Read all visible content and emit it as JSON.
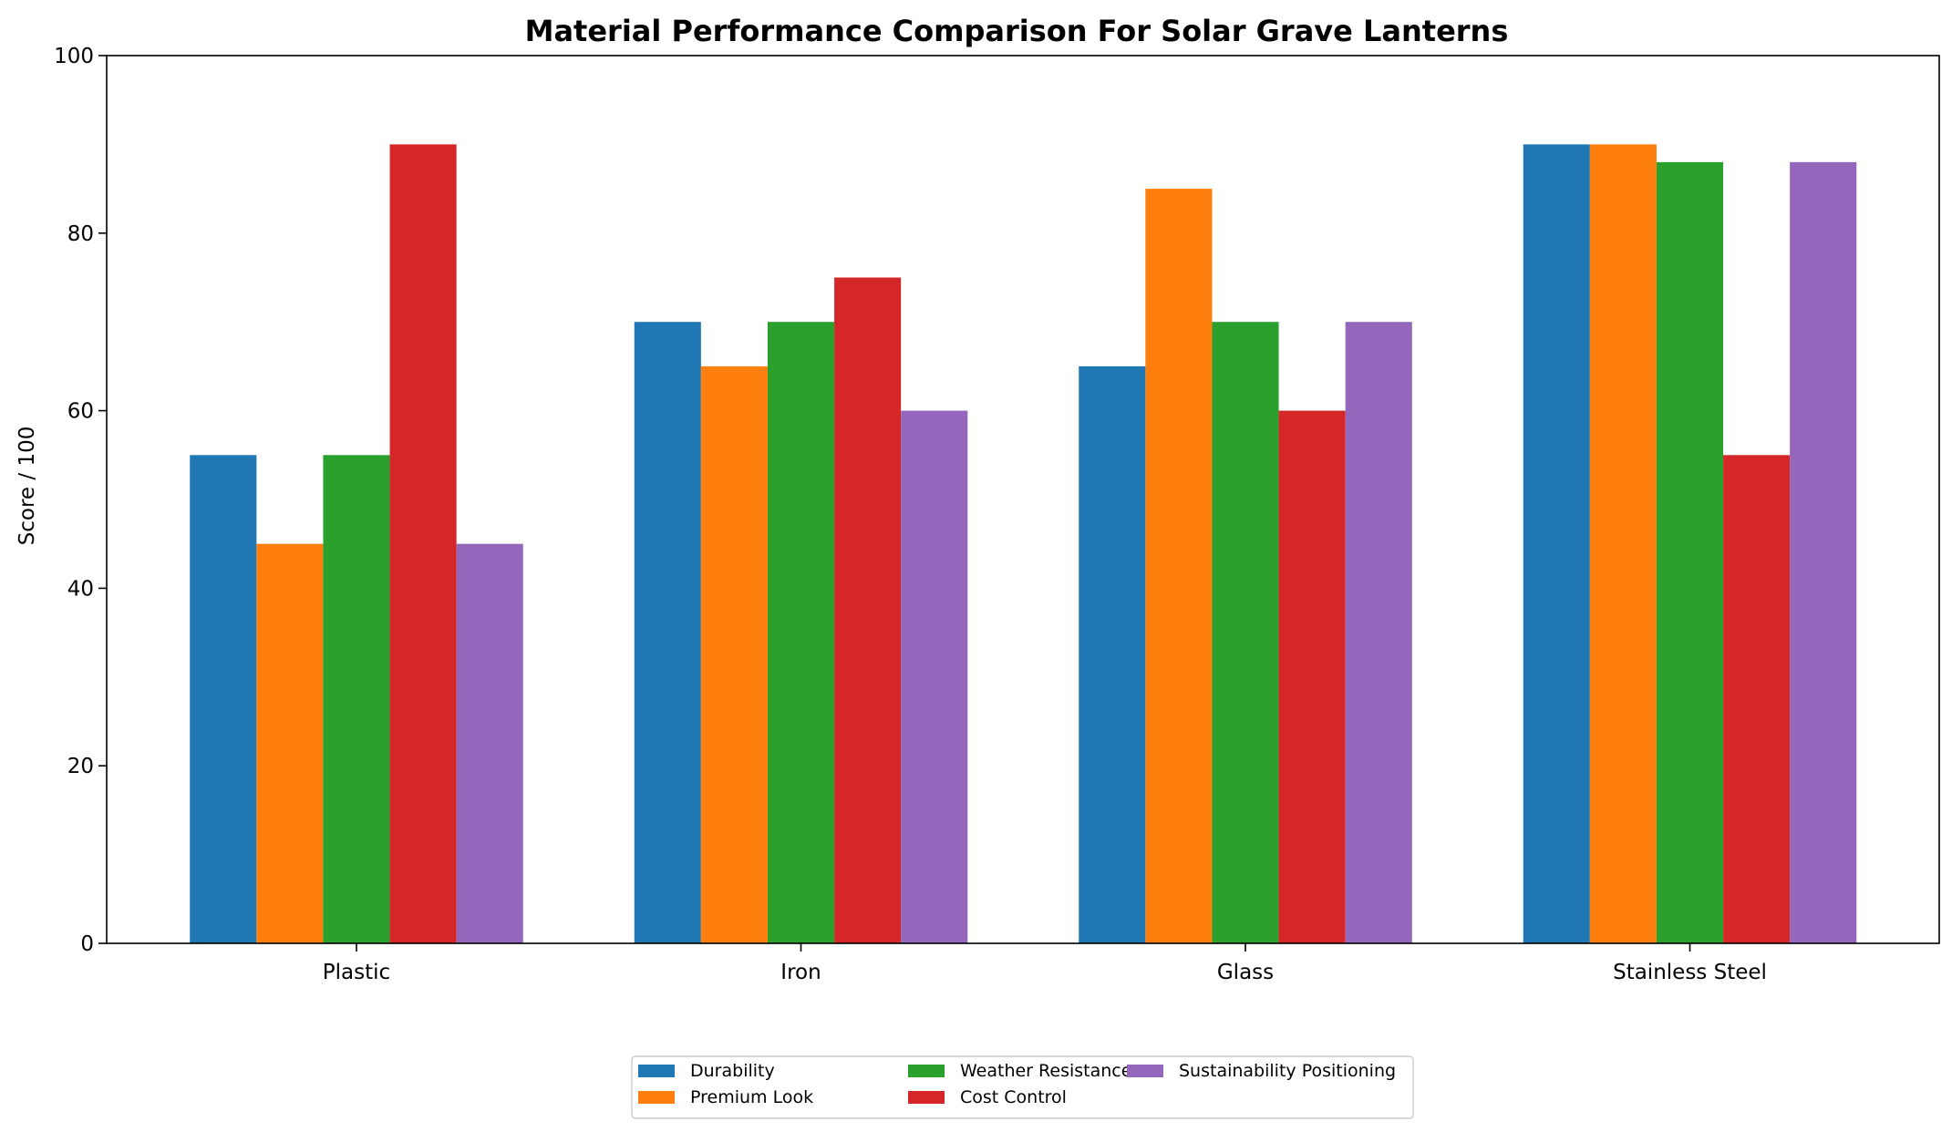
{
  "chart_data": {
    "type": "bar",
    "title": "Material Performance Comparison For Solar Grave Lanterns",
    "xlabel": "",
    "ylabel": "Score / 100",
    "ylim": [
      0,
      100
    ],
    "yticks": [
      "0",
      "20",
      "40",
      "60",
      "80",
      "100"
    ],
    "categories": [
      "Plastic",
      "Iron",
      "Glass",
      "Stainless Steel"
    ],
    "series": [
      {
        "name": "Durability",
        "color": "#1f77b4",
        "values": [
          55,
          70,
          65,
          90
        ]
      },
      {
        "name": "Premium Look",
        "color": "#ff7f0e",
        "values": [
          45,
          65,
          85,
          90
        ]
      },
      {
        "name": "Weather Resistance",
        "color": "#2ca02c",
        "values": [
          55,
          70,
          70,
          88
        ]
      },
      {
        "name": "Cost Control",
        "color": "#d62728",
        "values": [
          90,
          75,
          60,
          55
        ]
      },
      {
        "name": "Sustainability Positioning",
        "color": "#9467bd",
        "values": [
          45,
          60,
          70,
          88
        ]
      }
    ],
    "grid": false,
    "legend_position": "bottom-center"
  }
}
